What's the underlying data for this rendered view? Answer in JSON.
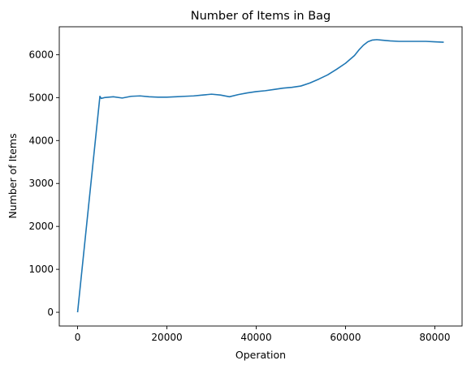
{
  "chart_data": {
    "type": "line",
    "title": "Number of Items in Bag",
    "xlabel": "Operation",
    "ylabel": "Number of Items",
    "xlim": [
      -4100,
      86100
    ],
    "ylim": [
      -320,
      6650
    ],
    "xticks": [
      0,
      20000,
      40000,
      60000,
      80000
    ],
    "xtick_labels": [
      "0",
      "20000",
      "40000",
      "60000",
      "80000"
    ],
    "yticks": [
      0,
      1000,
      2000,
      3000,
      4000,
      5000,
      6000
    ],
    "ytick_labels": [
      "0",
      "1000",
      "2000",
      "3000",
      "4000",
      "5000",
      "6000"
    ],
    "grid": false,
    "line_color": "#1f77b4",
    "series": [
      {
        "x": [
          0,
          5000,
          5300,
          6000,
          8000,
          10000,
          12000,
          14000,
          16000,
          18000,
          20000,
          22000,
          24000,
          26000,
          28000,
          30000,
          32000,
          34000,
          36000,
          38000,
          40000,
          42000,
          44000,
          46000,
          48000,
          50000,
          52000,
          54000,
          56000,
          58000,
          60000,
          62000,
          63000,
          64000,
          65000,
          66000,
          67000,
          68000,
          70000,
          72000,
          74000,
          76000,
          78000,
          80000,
          82000
        ],
        "y": [
          0,
          5030,
          4980,
          5000,
          5020,
          4990,
          5030,
          5040,
          5020,
          5010,
          5010,
          5020,
          5030,
          5040,
          5060,
          5080,
          5060,
          5020,
          5070,
          5110,
          5140,
          5160,
          5190,
          5220,
          5240,
          5270,
          5340,
          5430,
          5530,
          5660,
          5800,
          5980,
          6110,
          6220,
          6300,
          6340,
          6350,
          6340,
          6320,
          6310,
          6310,
          6310,
          6310,
          6300,
          6290
        ]
      }
    ]
  }
}
